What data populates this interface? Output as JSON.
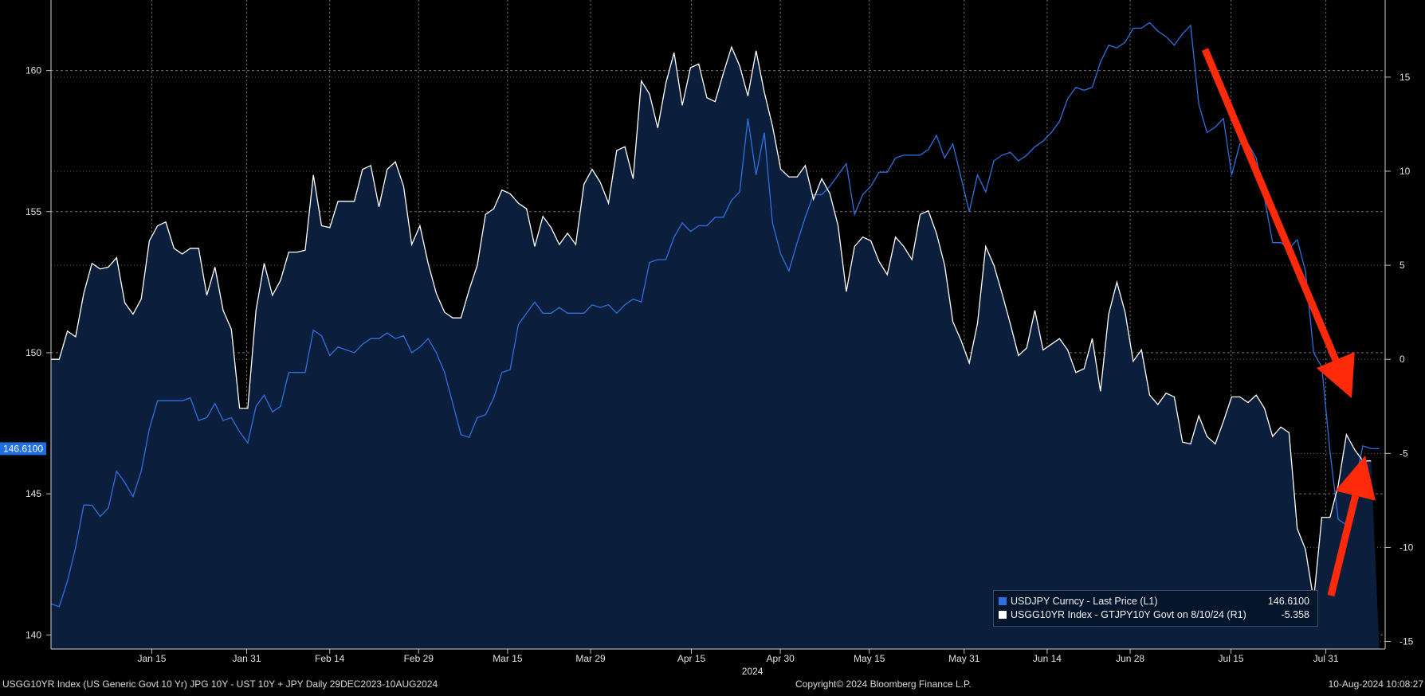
{
  "chart_data": {
    "type": "line",
    "date_range": [
      "2023-12-29",
      "2024-08-10"
    ],
    "x_ticks": [
      "Jan 15",
      "Jan 31",
      "Feb 14",
      "Feb 29",
      "Mar 15",
      "Mar 29",
      "Apr 15",
      "Apr 30",
      "May 15",
      "May 31",
      "Jun 14",
      "Jun 28",
      "Jul 15",
      "Jul 31"
    ],
    "x_year_label": "2024",
    "left_axis": {
      "ticks": [
        "140",
        "145",
        "150",
        "155",
        "160"
      ],
      "ylim": [
        139.5,
        162.5
      ]
    },
    "right_axis": {
      "ticks": [
        "-15",
        "-10",
        "-5",
        "0",
        "5",
        "10",
        "15"
      ],
      "ylim": [
        -15.4,
        19.1
      ]
    },
    "grid": true,
    "series": [
      {
        "name": "USDJPY Curncy - Last Price (L1)",
        "axis": "left",
        "color": "#2f6fe0",
        "last_value_label": "146.6100",
        "values": [
          141.1,
          141.0,
          141.9,
          143.1,
          144.6,
          144.6,
          144.2,
          144.5,
          145.8,
          145.4,
          144.9,
          145.8,
          147.3,
          148.3,
          148.3,
          148.3,
          148.3,
          148.4,
          147.6,
          147.7,
          148.2,
          147.6,
          147.7,
          147.2,
          146.8,
          148.1,
          148.5,
          147.9,
          148.1,
          149.3,
          149.3,
          149.3,
          150.8,
          150.6,
          149.9,
          150.2,
          150.1,
          150.0,
          150.3,
          150.5,
          150.5,
          150.7,
          150.5,
          150.6,
          150.0,
          150.2,
          150.5,
          150.0,
          149.3,
          148.2,
          147.1,
          147.0,
          147.7,
          147.8,
          148.4,
          149.3,
          149.4,
          151.0,
          151.4,
          151.8,
          151.4,
          151.4,
          151.6,
          151.4,
          151.4,
          151.4,
          151.7,
          151.6,
          151.7,
          151.4,
          151.7,
          151.9,
          151.8,
          153.2,
          153.3,
          153.3,
          154.1,
          154.6,
          154.3,
          154.5,
          154.5,
          154.8,
          154.8,
          155.4,
          155.7,
          158.3,
          156.3,
          157.8,
          154.6,
          153.5,
          152.9,
          153.9,
          154.8,
          155.6,
          155.6,
          155.9,
          156.3,
          156.7,
          154.9,
          155.6,
          155.9,
          156.4,
          156.4,
          156.9,
          157.0,
          157.0,
          157.0,
          157.2,
          157.7,
          156.9,
          157.4,
          156.2,
          155.0,
          156.3,
          155.7,
          156.8,
          157.0,
          157.1,
          156.8,
          157.0,
          157.3,
          157.5,
          157.8,
          158.2,
          159.0,
          159.4,
          159.3,
          159.4,
          160.3,
          160.9,
          160.8,
          161.0,
          161.5,
          161.5,
          161.7,
          161.4,
          161.2,
          160.9,
          161.3,
          161.6,
          158.8,
          157.8,
          158.0,
          158.3,
          156.3,
          157.4,
          157.4,
          156.9,
          155.5,
          153.9,
          153.9,
          153.7,
          154.0,
          152.9,
          150.0,
          149.5,
          146.5,
          144.1,
          143.9,
          145.3,
          146.7,
          146.6,
          146.6
        ]
      },
      {
        "name": "USGG10YR Index - GTJPY10Y Govt on 8/10/24 (R1)",
        "axis": "right",
        "color": "#ffffff",
        "last_value_label": "-5.358",
        "values": [
          0.0,
          0.0,
          1.5,
          1.2,
          3.5,
          5.1,
          4.8,
          4.9,
          5.4,
          3.0,
          2.4,
          3.2,
          6.3,
          7.1,
          7.3,
          5.9,
          5.6,
          5.9,
          5.9,
          3.4,
          4.9,
          2.6,
          1.6,
          -2.6,
          -2.6,
          2.6,
          5.1,
          3.4,
          4.2,
          5.7,
          5.7,
          5.8,
          9.8,
          7.1,
          7.0,
          8.4,
          8.4,
          8.4,
          10.1,
          10.3,
          8.1,
          10.1,
          10.5,
          9.2,
          6.1,
          7.1,
          5.1,
          3.5,
          2.5,
          2.2,
          2.2,
          3.7,
          5.0,
          7.7,
          8.0,
          9.0,
          8.8,
          8.3,
          8.0,
          6.0,
          7.6,
          7.0,
          6.1,
          6.7,
          6.1,
          9.3,
          10.1,
          9.4,
          8.3,
          11.1,
          11.3,
          9.6,
          14.8,
          14.1,
          12.3,
          14.7,
          16.3,
          13.5,
          15.5,
          15.7,
          13.9,
          13.7,
          15.2,
          16.6,
          15.6,
          14.0,
          16.4,
          14.2,
          12.4,
          10.1,
          9.7,
          9.7,
          10.3,
          8.5,
          9.6,
          8.8,
          7.1,
          3.6,
          6.0,
          6.5,
          6.3,
          5.2,
          4.5,
          6.5,
          6.0,
          5.3,
          7.7,
          7.9,
          6.7,
          5.0,
          2.0,
          1.0,
          -0.2,
          1.9,
          6.0,
          5.0,
          3.5,
          1.9,
          0.2,
          0.6,
          2.6,
          0.5,
          0.8,
          1.1,
          0.5,
          -0.7,
          -0.5,
          1.1,
          -1.7,
          2.4,
          4.1,
          2.5,
          -0.1,
          0.5,
          -1.9,
          -2.4,
          -1.8,
          -2.0,
          -4.4,
          -4.5,
          -3.0,
          -4.1,
          -4.5,
          -3.3,
          -2.0,
          -2.0,
          -2.3,
          -1.9,
          -2.6,
          -4.1,
          -3.6,
          -3.9,
          -9.0,
          -10.1,
          -12.8,
          -8.4,
          -8.4,
          -6.7,
          -4.0,
          -4.8,
          -5.4,
          -5.4
        ]
      }
    ],
    "annotations": [
      "down-arrow",
      "up-arrow"
    ],
    "arrow_color": "#ff2a0a",
    "legend": {
      "placement": "bottom-right"
    }
  },
  "footer": {
    "left": "USGG10YR Index (US Generic Govt 10 Yr) JPG 10Y - UST 10Y + JPY  Daily 29DEC2023-10AUG2024",
    "center": "Copyright© 2024 Bloomberg Finance L.P.",
    "right": "10-Aug-2024 10:08:27"
  }
}
